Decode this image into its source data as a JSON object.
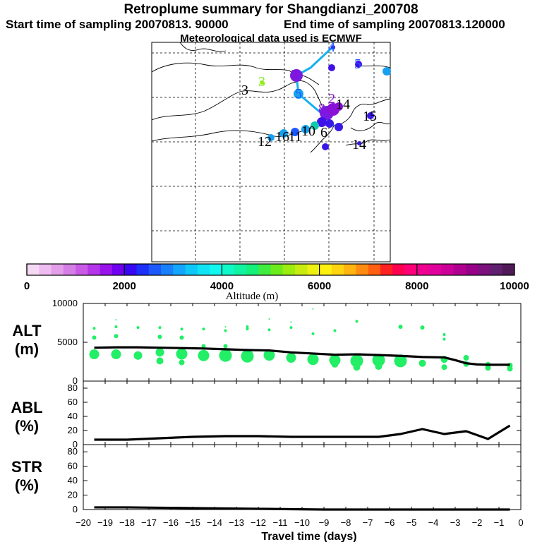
{
  "header": {
    "title": "Retroplume summary for Shangdianzi_200708",
    "start_label": "Start time of sampling 20070813. 90000",
    "end_label": "End time of sampling 20070813.120000",
    "met_label": "Meteorological data used is ECMWF"
  },
  "colorbar": {
    "colors": [
      "#f4d8f4",
      "#eebcf0",
      "#e29ee8",
      "#d47ee6",
      "#c85ae6",
      "#b436e8",
      "#9a12ec",
      "#7000f0",
      "#3808f4",
      "#1c30f8",
      "#1c58fc",
      "#1880fc",
      "#14a6fc",
      "#10c8f8",
      "#10e4f4",
      "#10f8f0",
      "#10f8c8",
      "#10f4a2",
      "#14f07a",
      "#40ec40",
      "#6cec1c",
      "#9cec10",
      "#c8ec10",
      "#eef010",
      "#fff010",
      "#ffd410",
      "#ffb410",
      "#ff8c10",
      "#ff6010",
      "#ff2020",
      "#ff0050",
      "#ff0078",
      "#f00090",
      "#e0009c",
      "#cc0098",
      "#b00090",
      "#980088",
      "#7c107c",
      "#602070",
      "#501a58"
    ],
    "ticks": [
      "0",
      "2000",
      "4000",
      "6000",
      "8000",
      "10000"
    ],
    "label": "Altitude (m)"
  },
  "map": {
    "labels": [
      {
        "text": "3",
        "color": "#000000"
      },
      {
        "text": "3",
        "color": "#7cec20"
      },
      {
        "text": "3",
        "color": "#8a10d8"
      },
      {
        "text": "5",
        "color": "#1c58fc"
      },
      {
        "text": "4",
        "color": "#1c58fc"
      },
      {
        "text": "5",
        "color": "#1c58fc"
      },
      {
        "text": "2",
        "color": "#8a10d8"
      },
      {
        "text": "14",
        "color": "#000000"
      },
      {
        "text": "15",
        "color": "#000000"
      },
      {
        "text": "14",
        "color": "#000000"
      },
      {
        "text": "12",
        "color": "#000000"
      },
      {
        "text": "16",
        "color": "#000000"
      },
      {
        "text": "11",
        "color": "#000000"
      },
      {
        "text": "10",
        "color": "#000000"
      },
      {
        "text": "6",
        "color": "#000000"
      },
      {
        "text": "8",
        "color": "#8a10d8"
      }
    ]
  },
  "chart_data": [
    {
      "type": "line",
      "title": "ALT (m)",
      "ylabel": "ALT (m)",
      "xlabel": "Travel time (days)",
      "xlim": [
        -20,
        0
      ],
      "ylim": [
        0,
        10000
      ],
      "yticks": [
        "10000",
        "5000",
        "0"
      ],
      "series": [
        {
          "name": "mean altitude",
          "x": [
            -19.5,
            -18.5,
            -17.5,
            -16.5,
            -15.5,
            -14.5,
            -13.5,
            -12.5,
            -11.5,
            -10.5,
            -9.5,
            -8.5,
            -7.5,
            -6.5,
            -5.5,
            -4.5,
            -3.5,
            -3,
            -2.5,
            -2,
            -1.5,
            -1,
            -0.5
          ],
          "y": [
            4300,
            4350,
            4350,
            4300,
            4250,
            4200,
            4100,
            4000,
            3950,
            3700,
            3550,
            3400,
            3450,
            3350,
            3250,
            3100,
            3050,
            2700,
            2300,
            2150,
            2100,
            2100,
            2100
          ]
        }
      ],
      "clusters": {
        "x": [
          -19.5,
          -18.5,
          -17.5,
          -16.5,
          -15.5,
          -14.5,
          -13.5,
          -12.5,
          -11.5,
          -10.5,
          -9.5,
          -8.5,
          -7.5,
          -6.5,
          -5.5,
          -4.5,
          -3.5,
          -2.5,
          -1.5,
          -0.5
        ],
        "y": [
          [
            3450,
            5600,
            6800
          ],
          [
            3450,
            5800,
            7000,
            7900
          ],
          [
            3300,
            6900
          ],
          [
            3700,
            2600,
            5700,
            6900
          ],
          [
            3500,
            2400,
            5600,
            6700
          ],
          [
            3300,
            4500,
            6700
          ],
          [
            3300,
            4500,
            6500,
            7000
          ],
          [
            3200,
            6700,
            7000
          ],
          [
            3350,
            6600,
            8000
          ],
          [
            3000,
            6900,
            7600
          ],
          [
            2800,
            6100,
            9300
          ],
          [
            2700,
            2200,
            6500
          ],
          [
            2600,
            1800,
            7700
          ],
          [
            2700,
            1900,
            3200
          ],
          [
            2600,
            7000
          ],
          [
            2300,
            6900
          ],
          [
            2800,
            1800,
            5400,
            6000
          ],
          [
            2200,
            3000
          ],
          [
            1700,
            2100
          ],
          [
            1600,
            2000
          ]
        ],
        "r": [
          [
            7,
            3,
            2
          ],
          [
            7,
            3,
            2,
            1
          ],
          [
            6,
            2
          ],
          [
            6,
            5,
            3,
            2
          ],
          [
            8,
            4,
            3,
            2
          ],
          [
            8,
            3,
            2
          ],
          [
            9,
            3,
            2,
            1
          ],
          [
            9,
            2,
            2
          ],
          [
            8,
            2,
            1
          ],
          [
            7,
            2,
            1
          ],
          [
            8,
            2,
            1
          ],
          [
            8,
            5,
            2
          ],
          [
            9,
            5,
            2
          ],
          [
            9,
            5,
            3
          ],
          [
            9,
            3
          ],
          [
            5,
            3
          ],
          [
            5,
            4,
            2,
            2
          ],
          [
            4,
            4
          ],
          [
            4,
            4
          ],
          [
            4,
            4
          ]
        ]
      }
    },
    {
      "type": "line",
      "title": "ABL (%)",
      "ylabel": "ABL (%)",
      "xlim": [
        -20,
        0
      ],
      "ylim": [
        0,
        90
      ],
      "yticks": [
        "80",
        "60",
        "40",
        "20",
        "0"
      ],
      "series": [
        {
          "name": "ABL fraction",
          "x": [
            -19.5,
            -18,
            -16.5,
            -15,
            -13.5,
            -12,
            -10.5,
            -9,
            -7.5,
            -6.5,
            -5.5,
            -4.5,
            -3.5,
            -2.5,
            -1.5,
            -0.5
          ],
          "y": [
            7,
            7,
            9,
            11,
            12,
            12,
            11,
            11,
            11,
            11,
            15,
            22,
            15,
            19,
            8,
            27
          ]
        }
      ]
    },
    {
      "type": "line",
      "title": "STR (%)",
      "ylabel": "STR (%)",
      "xlim": [
        -20,
        0
      ],
      "ylim": [
        0,
        90
      ],
      "yticks": [
        "80",
        "60",
        "40",
        "20",
        "0"
      ],
      "series": [
        {
          "name": "STR fraction",
          "x": [
            -19.5,
            -18,
            -16.5,
            -15,
            -13.5,
            -12,
            -10.5,
            -9,
            -7.5,
            -6,
            -4.5,
            -3,
            -1.5,
            -0.5
          ],
          "y": [
            3,
            3,
            2.5,
            2,
            1.5,
            1,
            0.5,
            0,
            0,
            0,
            0,
            0,
            0,
            0
          ]
        }
      ]
    }
  ],
  "panels": {
    "alt_label_1": "ALT",
    "alt_label_2": "(m)",
    "abl_label_1": "ABL",
    "abl_label_2": "(%)",
    "str_label_1": "STR",
    "str_label_2": "(%)"
  },
  "xaxis": {
    "ticks": [
      "−20",
      "−19",
      "−18",
      "−17",
      "−16",
      "−15",
      "−14",
      "−13",
      "−12",
      "−11",
      "−10",
      "−9",
      "−8",
      "−7",
      "−6",
      "−5",
      "−4",
      "−3",
      "−2",
      "−1",
      "0"
    ],
    "label": "Travel time (days)"
  },
  "colors": {
    "scatter": "#22ee66",
    "line": "#000000",
    "trajectory": "#18b0ee"
  }
}
